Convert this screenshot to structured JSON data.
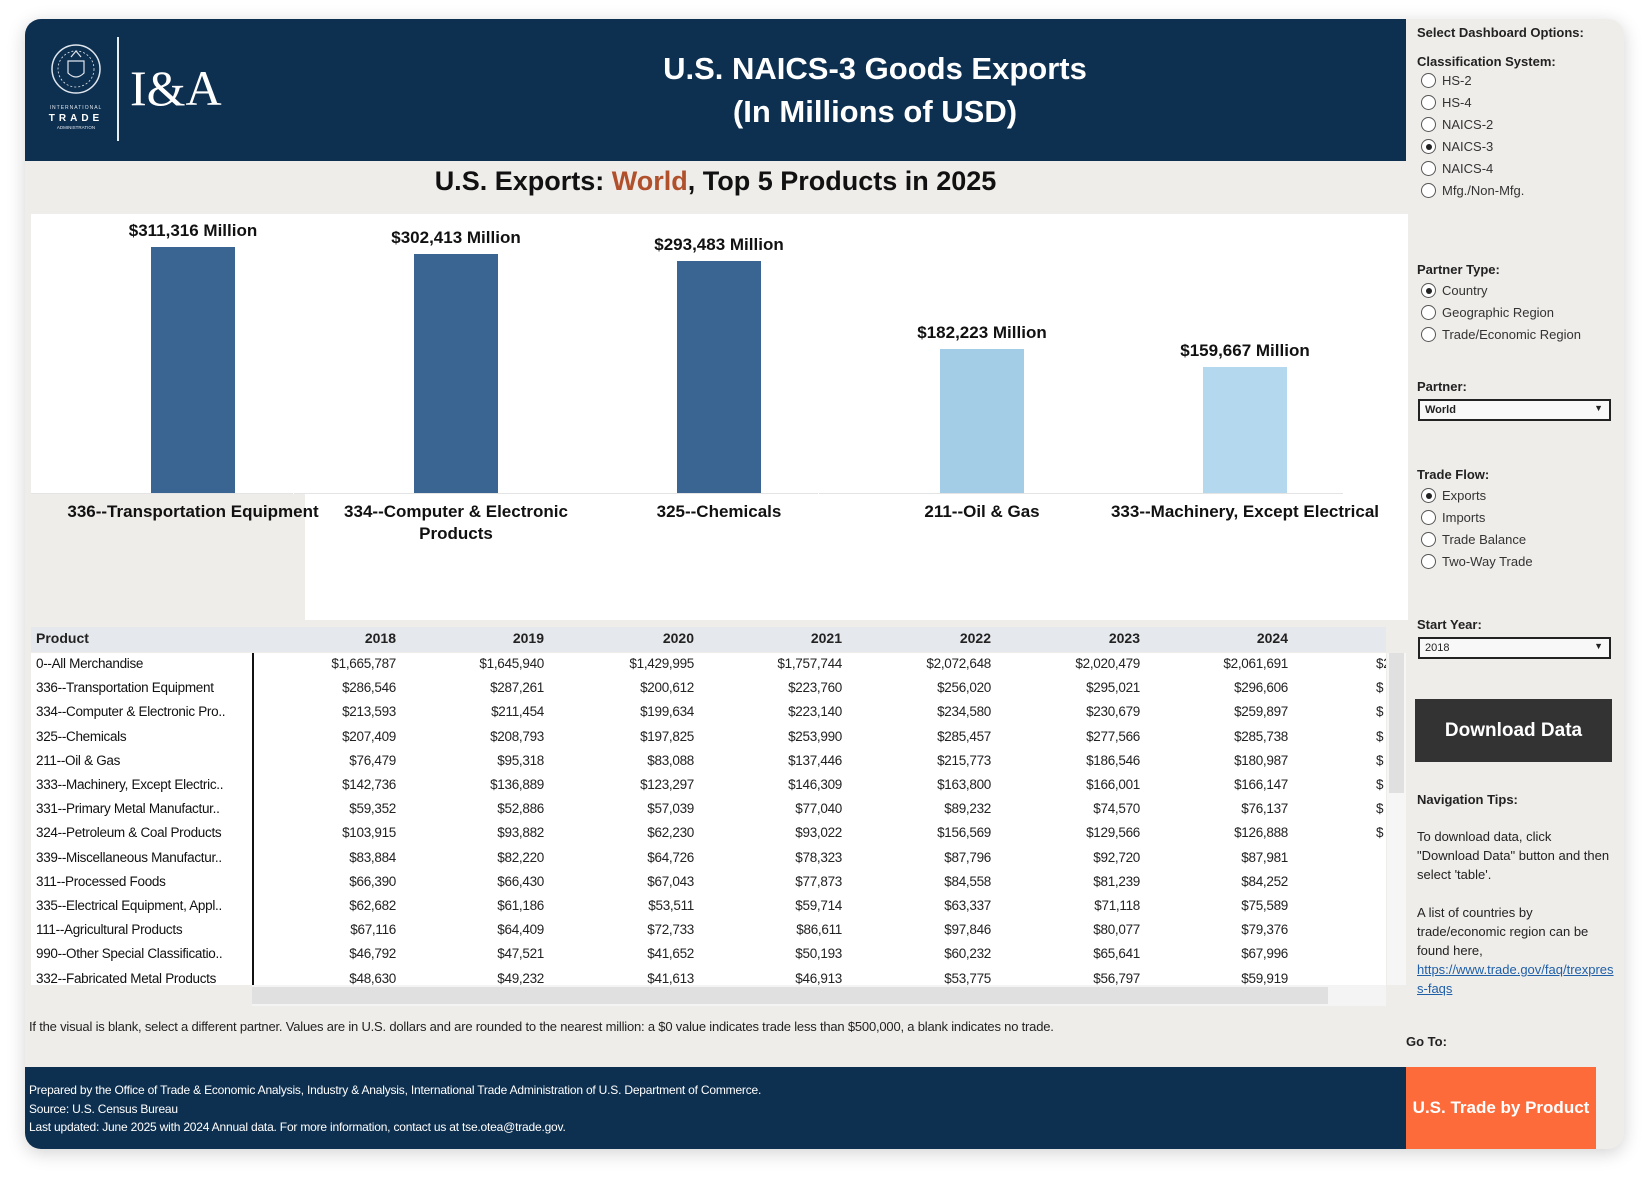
{
  "header": {
    "logo_text": "INTERNATIONAL TRADE ADMINISTRATION",
    "brand": "I&A",
    "title_line1": "U.S. NAICS-3 Goods Exports",
    "title_line2": "(In Millions of USD)"
  },
  "subtitle": {
    "prefix": "U.S. Exports: ",
    "partner": "World",
    "suffix": ", Top 5 Products in 2025",
    "highlight_color": "#b0512c"
  },
  "chart_data": {
    "type": "bar",
    "categories": [
      "336--Transportation Equipment",
      "334--Computer & Electronic Products",
      "325--Chemicals",
      "211--Oil & Gas",
      "333--Machinery, Except Electrical"
    ],
    "values": [
      311316,
      302413,
      293483,
      182223,
      159667
    ],
    "data_labels": [
      "$311,316 Million",
      "$302,413 Million",
      "$293,483 Million",
      "$182,223 Million",
      "$159,667 Million"
    ],
    "colors": [
      "#3a6491",
      "#3a6491",
      "#3a6491",
      "#a3cce6",
      "#b4d9ee"
    ],
    "ylim": [
      0,
      311316
    ],
    "grid": false
  },
  "table": {
    "headers": [
      "Product",
      "2018",
      "2019",
      "2020",
      "2021",
      "2022",
      "2023",
      "2024"
    ],
    "rows": [
      [
        "0--All Merchandise",
        "$1,665,787",
        "$1,645,940",
        "$1,429,995",
        "$1,757,744",
        "$2,072,648",
        "$2,020,479",
        "$2,061,691",
        "$2,"
      ],
      [
        "336--Transportation Equipment",
        "$286,546",
        "$287,261",
        "$200,612",
        "$223,760",
        "$256,020",
        "$295,021",
        "$296,606",
        "$"
      ],
      [
        "334--Computer & Electronic Pro..",
        "$213,593",
        "$211,454",
        "$199,634",
        "$223,140",
        "$234,580",
        "$230,679",
        "$259,897",
        "$"
      ],
      [
        "325--Chemicals",
        "$207,409",
        "$208,793",
        "$197,825",
        "$253,990",
        "$285,457",
        "$277,566",
        "$285,738",
        "$"
      ],
      [
        "211--Oil & Gas",
        "$76,479",
        "$95,318",
        "$83,088",
        "$137,446",
        "$215,773",
        "$186,546",
        "$180,987",
        "$"
      ],
      [
        "333--Machinery, Except Electric..",
        "$142,736",
        "$136,889",
        "$123,297",
        "$146,309",
        "$163,800",
        "$166,001",
        "$166,147",
        "$"
      ],
      [
        "331--Primary Metal Manufactur..",
        "$59,352",
        "$52,886",
        "$57,039",
        "$77,040",
        "$89,232",
        "$74,570",
        "$76,137",
        "$"
      ],
      [
        "324--Petroleum & Coal Products",
        "$103,915",
        "$93,882",
        "$62,230",
        "$93,022",
        "$156,569",
        "$129,566",
        "$126,888",
        "$"
      ],
      [
        "339--Miscellaneous Manufactur..",
        "$83,884",
        "$82,220",
        "$64,726",
        "$78,323",
        "$87,796",
        "$92,720",
        "$87,981",
        ""
      ],
      [
        "311--Processed Foods",
        "$66,390",
        "$66,430",
        "$67,043",
        "$77,873",
        "$84,558",
        "$81,239",
        "$84,252",
        ""
      ],
      [
        "335--Electrical Equipment, Appl..",
        "$62,682",
        "$61,186",
        "$53,511",
        "$59,714",
        "$63,337",
        "$71,118",
        "$75,589",
        ""
      ],
      [
        "111--Agricultural Products",
        "$67,116",
        "$64,409",
        "$72,733",
        "$86,611",
        "$97,846",
        "$80,077",
        "$79,376",
        ""
      ],
      [
        "990--Other Special Classificatio..",
        "$46,792",
        "$47,521",
        "$41,652",
        "$50,193",
        "$60,232",
        "$65,641",
        "$67,996",
        ""
      ],
      [
        "332--Fabricated Metal Products",
        "$48,630",
        "$49,232",
        "$41,613",
        "$46,913",
        "$53,775",
        "$56,797",
        "$59,919",
        ""
      ]
    ]
  },
  "note": "If the visual is blank, select a different partner. Values are in U.S. dollars and are rounded to the nearest million: a $0 value indicates trade less than $500,000, a blank indicates no trade.",
  "footer": {
    "line1": "Prepared by the Office of Trade & Economic Analysis, Industry & Analysis, International Trade Administration of U.S. Department of Commerce.",
    "line2": "Source: U.S. Census Bureau",
    "line3": "Last updated: June 2025 with 2024 Annual data. For more information, contact us at tse.otea@trade.gov."
  },
  "sidebar": {
    "heading": "Select Dashboard Options:",
    "classification": {
      "label": "Classification System:",
      "options": [
        "HS-2",
        "HS-4",
        "NAICS-2",
        "NAICS-3",
        "NAICS-4",
        "Mfg./Non-Mfg."
      ],
      "selected": "NAICS-3"
    },
    "partner_type": {
      "label": "Partner Type:",
      "options": [
        "Country",
        "Geographic Region",
        "Trade/Economic Region"
      ],
      "selected": "Country"
    },
    "partner": {
      "label": "Partner:",
      "value": "World"
    },
    "trade_flow": {
      "label": "Trade Flow:",
      "options": [
        "Exports",
        "Imports",
        "Trade Balance",
        "Two-Way Trade"
      ],
      "selected": "Exports"
    },
    "start_year": {
      "label": "Start Year:",
      "value": "2018"
    },
    "download_label": "Download Data",
    "tips_heading": "Navigation Tips:",
    "tip1": "To download data, click \"Download Data\" button and then select 'table'.",
    "tip2": "A list of countries by trade/economic region can be found here,",
    "tip2_link": "https://www.trade.gov/faq/trexpress-faqs",
    "goto_label": "Go To:",
    "goto_button": "U.S. Trade by Product"
  }
}
